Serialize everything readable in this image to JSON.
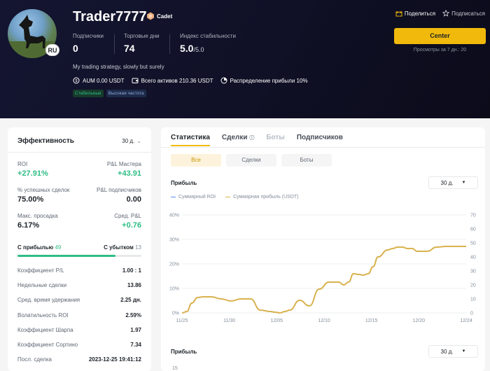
{
  "profile": {
    "nickname": "Trader7777",
    "badge": "Cadet",
    "lang": "RU",
    "bio": "My trading strategy, slowly but surely",
    "stats": [
      {
        "label": "Подписчики",
        "value": "0",
        "suffix": ""
      },
      {
        "label": "Торговые дни",
        "value": "74",
        "suffix": ""
      },
      {
        "label": "Индекс стабильности",
        "value": "5.0",
        "suffix": "/5.0"
      }
    ],
    "chips": [
      {
        "icon": "coin-icon",
        "text": "AUM 0.00 USDT"
      },
      {
        "icon": "wallet-icon",
        "text": "Всего активов 210.36 USDT"
      },
      {
        "icon": "pie-chart-icon",
        "text": "Распределение прибыли 10%"
      }
    ],
    "tags": [
      "Стабильные",
      "Высокая частота"
    ]
  },
  "actions": {
    "share": "Поделиться",
    "subscribe": "Подписаться",
    "copy_button": "Center",
    "views": "Просмотры за 7 дн.: 20"
  },
  "performance": {
    "title": "Эффективность",
    "period": "30 д.",
    "metrics": [
      {
        "label": "ROI",
        "value": "+27.91%",
        "positive": true
      },
      {
        "label": "P&L Мастера",
        "value": "+43.91",
        "positive": true
      },
      {
        "label": "% успешных сделок",
        "value": "75.00%",
        "positive": false
      },
      {
        "label": "P&L подписчиков",
        "value": "0.00",
        "positive": false
      },
      {
        "label": "Макс. просадка",
        "value": "6.17%",
        "positive": false
      },
      {
        "label": "Сред. P&L",
        "value": "+0.76",
        "positive": true
      }
    ],
    "profit_label": "С прибылью",
    "profit_count": "49",
    "loss_label": "С убытком",
    "loss_count": "13",
    "profit_ratio": 0.79,
    "rows": [
      {
        "label": "Коэффициент P/L",
        "value": "1.00 : 1"
      },
      {
        "label": "Недельные сделки",
        "value": "13.86"
      },
      {
        "label": "Сред. время удержания",
        "value": "2.25 дн."
      },
      {
        "label": "Волатильность ROI",
        "value": "2.59%"
      },
      {
        "label": "Коэффициент Шарпа",
        "value": "1.97"
      },
      {
        "label": "Коэффициент Сортино",
        "value": "7.34"
      },
      {
        "label": "Посл. сделка",
        "value": "2023-12-25 19:41:12"
      }
    ]
  },
  "stats_panel": {
    "tabs": [
      {
        "label": "Статистика",
        "state": "active"
      },
      {
        "label": "Сделки",
        "state": "info"
      },
      {
        "label": "Боты",
        "state": "disabled"
      },
      {
        "label": "Подписчиков",
        "state": "normal"
      }
    ],
    "segments": [
      "Все",
      "Сделки",
      "Боты"
    ],
    "profit_title": "Прибыль",
    "period": "30 д.",
    "profit_title_2": "Прибыль",
    "period_2": "30 д.",
    "bottom_tick": "15"
  },
  "chart_data": {
    "type": "line",
    "title": "Прибыль",
    "legend": [
      "Суммарный ROI",
      "Суммарная прибыль (USDT)"
    ],
    "x_ticks": [
      "11/25",
      "11/30",
      "12/05",
      "12/10",
      "12/15",
      "12/20",
      "12/24"
    ],
    "y_left_ticks": [
      "0%",
      "10%",
      "20%",
      "30%",
      "40%"
    ],
    "y_right_ticks": [
      "0",
      "10",
      "20",
      "30",
      "40",
      "50",
      "60",
      "70"
    ],
    "y_left_range": [
      0,
      40
    ],
    "y_right_range": [
      0,
      70
    ],
    "x_range": [
      0,
      29
    ],
    "series": [
      {
        "name": "Суммарная прибыль (USDT)",
        "color": "#d9b24f",
        "axis": "right",
        "x": [
          0,
          0.5,
          1,
          1.6,
          2.2,
          3,
          4,
          5,
          6,
          7,
          8,
          9,
          9.5,
          10,
          10.5,
          11,
          12,
          13,
          14,
          15,
          16,
          16.5,
          17,
          17.5,
          18,
          18.5,
          19,
          19.5,
          20,
          21,
          21.5,
          22,
          22.5,
          23,
          23.5,
          24,
          25,
          26,
          27,
          28,
          29
        ],
        "y": [
          0,
          1,
          7,
          11,
          11.5,
          11.5,
          10,
          8.5,
          10,
          10,
          2,
          1,
          0.5,
          0,
          1,
          2,
          9,
          5,
          17,
          22,
          22,
          20,
          22,
          28,
          27.5,
          27,
          28,
          33,
          40,
          45,
          46,
          47,
          47,
          46,
          46,
          44,
          44,
          47,
          47.5,
          47.5,
          47.5
        ]
      },
      {
        "name": "Суммарный ROI",
        "color": "#5b8def",
        "axis": "left",
        "x": [],
        "y": []
      }
    ]
  }
}
